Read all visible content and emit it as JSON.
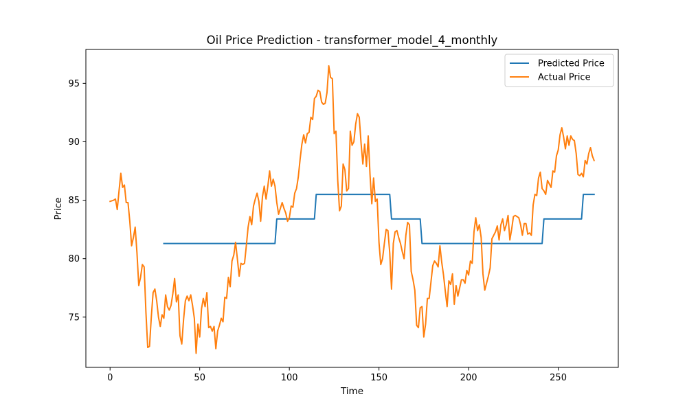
{
  "chart_data": {
    "type": "line",
    "title": "Oil Price Prediction - transformer_model_4_monthly",
    "xlabel": "Time",
    "ylabel": "Price",
    "xlim": [
      -13.5,
      283.5
    ],
    "ylim": [
      70.7,
      97.9
    ],
    "x_ticks": [
      0,
      50,
      100,
      150,
      200,
      250
    ],
    "y_ticks": [
      75,
      80,
      85,
      90,
      95
    ],
    "grid": false,
    "legend_position": "top-right",
    "series": [
      {
        "name": "Predicted Price",
        "color": "#1f77b4",
        "points": [
          [
            30,
            81.3
          ],
          [
            92,
            81.3
          ],
          [
            93,
            83.4
          ],
          [
            114,
            83.4
          ],
          [
            115,
            85.5
          ],
          [
            156,
            85.5
          ],
          [
            157,
            83.4
          ],
          [
            173,
            83.4
          ],
          [
            174,
            81.3
          ],
          [
            241,
            81.3
          ],
          [
            242,
            83.4
          ],
          [
            263,
            83.4
          ],
          [
            264,
            85.5
          ],
          [
            270,
            85.5
          ]
        ]
      },
      {
        "name": "Actual Price",
        "color": "#ff7f0e",
        "points": [
          [
            0,
            84.9
          ],
          [
            2,
            85.0
          ],
          [
            3,
            85.1
          ],
          [
            4,
            84.2
          ],
          [
            5,
            85.8
          ],
          [
            6,
            87.3
          ],
          [
            7,
            86.1
          ],
          [
            8,
            86.3
          ],
          [
            9,
            84.8
          ],
          [
            10,
            84.8
          ],
          [
            11,
            83.2
          ],
          [
            12,
            81.1
          ],
          [
            13,
            81.8
          ],
          [
            14,
            82.7
          ],
          [
            15,
            80.5
          ],
          [
            16,
            77.7
          ],
          [
            17,
            78.4
          ],
          [
            18,
            79.5
          ],
          [
            19,
            79.3
          ],
          [
            20,
            75.4
          ],
          [
            21,
            72.4
          ],
          [
            22,
            72.5
          ],
          [
            23,
            75.0
          ],
          [
            24,
            77.1
          ],
          [
            25,
            77.4
          ],
          [
            26,
            76.4
          ],
          [
            27,
            75.0
          ],
          [
            28,
            74.2
          ],
          [
            29,
            75.2
          ],
          [
            30,
            74.9
          ],
          [
            31,
            76.9
          ],
          [
            32,
            75.9
          ],
          [
            33,
            75.6
          ],
          [
            34,
            76.0
          ],
          [
            35,
            77.0
          ],
          [
            36,
            78.3
          ],
          [
            37,
            76.3
          ],
          [
            38,
            76.9
          ],
          [
            39,
            73.4
          ],
          [
            40,
            72.7
          ],
          [
            41,
            74.8
          ],
          [
            42,
            76.4
          ],
          [
            43,
            76.8
          ],
          [
            44,
            76.4
          ],
          [
            45,
            76.9
          ],
          [
            46,
            76.0
          ],
          [
            47,
            74.9
          ],
          [
            48,
            71.9
          ],
          [
            49,
            74.4
          ],
          [
            50,
            73.3
          ],
          [
            51,
            75.7
          ],
          [
            52,
            76.6
          ],
          [
            53,
            75.9
          ],
          [
            54,
            77.1
          ],
          [
            55,
            74.1
          ],
          [
            56,
            74.2
          ],
          [
            57,
            73.8
          ],
          [
            58,
            74.2
          ],
          [
            59,
            72.3
          ],
          [
            60,
            73.8
          ],
          [
            61,
            74.3
          ],
          [
            62,
            74.9
          ],
          [
            63,
            74.6
          ],
          [
            64,
            76.7
          ],
          [
            65,
            76.6
          ],
          [
            66,
            78.4
          ],
          [
            67,
            77.6
          ],
          [
            68,
            79.8
          ],
          [
            69,
            80.3
          ],
          [
            70,
            81.4
          ],
          [
            71,
            80.0
          ],
          [
            72,
            78.5
          ],
          [
            73,
            79.6
          ],
          [
            74,
            79.5
          ],
          [
            75,
            79.6
          ],
          [
            76,
            81.1
          ],
          [
            77,
            82.7
          ],
          [
            78,
            83.6
          ],
          [
            79,
            82.9
          ],
          [
            80,
            84.5
          ],
          [
            81,
            85.1
          ],
          [
            82,
            85.6
          ],
          [
            83,
            84.9
          ],
          [
            84,
            83.2
          ],
          [
            85,
            85.3
          ],
          [
            86,
            86.2
          ],
          [
            87,
            85.1
          ],
          [
            88,
            86.2
          ],
          [
            89,
            87.5
          ],
          [
            90,
            86.2
          ],
          [
            91,
            86.8
          ],
          [
            92,
            86.2
          ],
          [
            93,
            84.8
          ],
          [
            94,
            83.8
          ],
          [
            95,
            84.3
          ],
          [
            96,
            84.8
          ],
          [
            97,
            84.3
          ],
          [
            98,
            83.9
          ],
          [
            99,
            83.2
          ],
          [
            100,
            83.5
          ],
          [
            101,
            84.5
          ],
          [
            102,
            84.4
          ],
          [
            103,
            85.6
          ],
          [
            104,
            86.0
          ],
          [
            105,
            87.0
          ],
          [
            106,
            88.5
          ],
          [
            107,
            89.8
          ],
          [
            108,
            90.6
          ],
          [
            109,
            89.9
          ],
          [
            110,
            90.7
          ],
          [
            111,
            90.8
          ],
          [
            112,
            92.1
          ],
          [
            113,
            91.9
          ],
          [
            114,
            93.7
          ],
          [
            115,
            93.9
          ],
          [
            116,
            94.4
          ],
          [
            117,
            94.3
          ],
          [
            118,
            93.4
          ],
          [
            119,
            93.2
          ],
          [
            120,
            93.3
          ],
          [
            121,
            94.2
          ],
          [
            122,
            96.5
          ],
          [
            123,
            95.5
          ],
          [
            124,
            95.4
          ],
          [
            125,
            90.7
          ],
          [
            126,
            90.9
          ],
          [
            127,
            86.7
          ],
          [
            128,
            84.1
          ],
          [
            129,
            84.5
          ],
          [
            130,
            88.1
          ],
          [
            131,
            87.6
          ],
          [
            132,
            85.8
          ],
          [
            133,
            86.0
          ],
          [
            134,
            90.9
          ],
          [
            135,
            89.7
          ],
          [
            136,
            90.0
          ],
          [
            137,
            91.5
          ],
          [
            138,
            92.4
          ],
          [
            139,
            92.1
          ],
          [
            140,
            89.9
          ],
          [
            141,
            88.1
          ],
          [
            142,
            89.8
          ],
          [
            143,
            87.9
          ],
          [
            144,
            90.5
          ],
          [
            145,
            87.2
          ],
          [
            146,
            84.7
          ],
          [
            147,
            86.9
          ],
          [
            148,
            84.9
          ],
          [
            149,
            85.1
          ],
          [
            150,
            81.4
          ],
          [
            151,
            79.5
          ],
          [
            152,
            80.0
          ],
          [
            153,
            81.3
          ],
          [
            154,
            82.5
          ],
          [
            155,
            82.4
          ],
          [
            156,
            80.5
          ],
          [
            157,
            77.4
          ],
          [
            158,
            81.3
          ],
          [
            159,
            82.3
          ],
          [
            160,
            82.4
          ],
          [
            161,
            81.8
          ],
          [
            162,
            81.3
          ],
          [
            163,
            80.6
          ],
          [
            164,
            80.0
          ],
          [
            165,
            82.0
          ],
          [
            166,
            83.1
          ],
          [
            167,
            82.9
          ],
          [
            168,
            78.9
          ],
          [
            169,
            78.2
          ],
          [
            170,
            77.3
          ],
          [
            171,
            74.3
          ],
          [
            172,
            74.1
          ],
          [
            173,
            75.8
          ],
          [
            174,
            75.9
          ],
          [
            175,
            73.3
          ],
          [
            176,
            74.4
          ],
          [
            177,
            76.6
          ],
          [
            178,
            76.6
          ],
          [
            179,
            78.0
          ],
          [
            180,
            79.4
          ],
          [
            181,
            79.8
          ],
          [
            182,
            79.6
          ],
          [
            183,
            79.3
          ],
          [
            184,
            81.1
          ],
          [
            185,
            79.7
          ],
          [
            186,
            78.6
          ],
          [
            187,
            77.2
          ],
          [
            188,
            75.9
          ],
          [
            189,
            78.1
          ],
          [
            190,
            77.8
          ],
          [
            191,
            78.7
          ],
          [
            192,
            76.1
          ],
          [
            193,
            77.7
          ],
          [
            194,
            76.8
          ],
          [
            195,
            77.5
          ],
          [
            196,
            78.2
          ],
          [
            197,
            78.2
          ],
          [
            198,
            77.9
          ],
          [
            199,
            79.0
          ],
          [
            200,
            78.6
          ],
          [
            201,
            79.8
          ],
          [
            202,
            79.6
          ],
          [
            203,
            82.3
          ],
          [
            204,
            83.5
          ],
          [
            205,
            82.4
          ],
          [
            206,
            82.9
          ],
          [
            207,
            81.8
          ],
          [
            208,
            78.7
          ],
          [
            209,
            77.3
          ],
          [
            210,
            77.9
          ],
          [
            211,
            78.5
          ],
          [
            212,
            79.2
          ],
          [
            213,
            81.7
          ],
          [
            214,
            82.0
          ],
          [
            215,
            82.3
          ],
          [
            216,
            82.8
          ],
          [
            217,
            81.6
          ],
          [
            218,
            82.9
          ],
          [
            219,
            83.4
          ],
          [
            220,
            82.4
          ],
          [
            221,
            82.9
          ],
          [
            222,
            83.7
          ],
          [
            223,
            81.6
          ],
          [
            224,
            82.5
          ],
          [
            225,
            83.6
          ],
          [
            226,
            83.7
          ],
          [
            227,
            83.6
          ],
          [
            228,
            83.5
          ],
          [
            229,
            82.9
          ],
          [
            230,
            82.0
          ],
          [
            231,
            83.0
          ],
          [
            232,
            83.0
          ],
          [
            233,
            82.1
          ],
          [
            234,
            82.2
          ],
          [
            235,
            82.0
          ],
          [
            236,
            84.6
          ],
          [
            237,
            85.5
          ],
          [
            238,
            85.4
          ],
          [
            239,
            86.9
          ],
          [
            240,
            87.4
          ],
          [
            241,
            86.0
          ],
          [
            242,
            85.8
          ],
          [
            243,
            85.5
          ],
          [
            244,
            86.7
          ],
          [
            245,
            86.4
          ],
          [
            246,
            86.1
          ],
          [
            247,
            87.5
          ],
          [
            248,
            87.4
          ],
          [
            249,
            88.8
          ],
          [
            250,
            89.3
          ],
          [
            251,
            90.6
          ],
          [
            252,
            91.2
          ],
          [
            253,
            90.4
          ],
          [
            254,
            89.4
          ],
          [
            255,
            90.5
          ],
          [
            256,
            89.7
          ],
          [
            257,
            90.5
          ],
          [
            258,
            90.2
          ],
          [
            259,
            90.1
          ],
          [
            260,
            89.0
          ],
          [
            261,
            87.2
          ],
          [
            262,
            87.1
          ],
          [
            263,
            87.3
          ],
          [
            264,
            87.0
          ],
          [
            265,
            88.4
          ],
          [
            266,
            88.1
          ],
          [
            267,
            89.0
          ],
          [
            268,
            89.5
          ],
          [
            269,
            88.8
          ],
          [
            270,
            88.4
          ]
        ]
      }
    ]
  }
}
